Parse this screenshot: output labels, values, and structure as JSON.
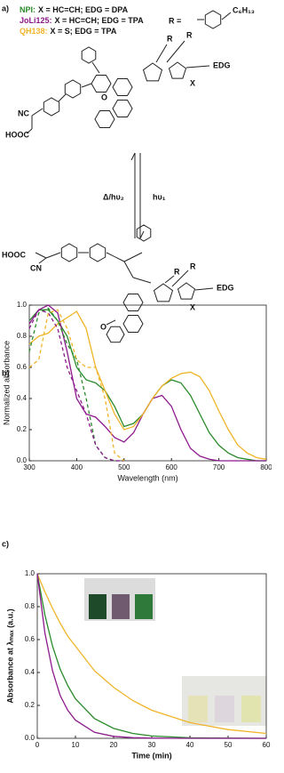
{
  "panel_labels": [
    "a)",
    "b)",
    "c)"
  ],
  "compounds": [
    {
      "name": "NPI:",
      "color": "#2a8a2a",
      "description": "X = HC=CH; EDG = DPA"
    },
    {
      "name": "JoLi125:",
      "color": "#8b1a8b",
      "description": "X = HC=CH; EDG = TPA"
    },
    {
      "name": "QH138:",
      "color": "#f0b429",
      "description": "X = S; EDG = TPA"
    }
  ],
  "chemistry": {
    "r_definition": "R =",
    "substituent": "C₆H₁₃",
    "closed_form": {
      "r1": "R",
      "r2": "R",
      "edg": "EDG",
      "x": "X",
      "o": "O",
      "nc": "NC",
      "acid": "HOOC"
    },
    "open_form": {
      "r1": "R",
      "r2": "R",
      "edg": "EDG",
      "x": "X",
      "o": "O",
      "cn": "CN",
      "acid": "HOOC"
    },
    "reverse_arrow": "Δ/hυ₂",
    "forward_arrow": "hυ₁"
  },
  "chart_data": [
    {
      "type": "line",
      "xlabel": "Wavelength (nm)",
      "ylabel": "Normalized absorbance",
      "xlim": [
        300,
        800
      ],
      "xticks": [
        300,
        400,
        500,
        600,
        700,
        800
      ],
      "ylim": [
        0,
        1.0
      ],
      "yticks": [
        {
          "value": 0,
          "label": "0.0"
        },
        0.2,
        0.4,
        0.6,
        0.8,
        {
          "value": 1.0,
          "label": "1.0"
        }
      ],
      "x": [
        300,
        320,
        340,
        360,
        380,
        400,
        420,
        440,
        460,
        480,
        500,
        520,
        540,
        560,
        580,
        600,
        620,
        640,
        660,
        680,
        700,
        720,
        740,
        760,
        780,
        800
      ],
      "series": [
        {
          "color": "#2a8a2a",
          "style": "solid",
          "values": [
            0.9,
            0.97,
            0.97,
            0.9,
            0.8,
            0.6,
            0.52,
            0.5,
            0.45,
            0.35,
            0.22,
            0.24,
            0.3,
            0.4,
            0.48,
            0.52,
            0.5,
            0.42,
            0.3,
            0.18,
            0.1,
            0.05,
            0.02,
            0.01,
            0,
            0
          ]
        },
        {
          "color": "#8b1a8b",
          "style": "solid",
          "values": [
            0.88,
            0.97,
            1.0,
            0.95,
            0.7,
            0.4,
            0.3,
            0.28,
            0.22,
            0.15,
            0.12,
            0.18,
            0.3,
            0.4,
            0.42,
            0.35,
            0.2,
            0.08,
            0.03,
            0.01,
            0,
            0,
            0,
            0,
            0,
            0
          ]
        },
        {
          "color": "#f0b429",
          "style": "solid",
          "values": [
            0.75,
            0.8,
            0.82,
            0.88,
            0.92,
            0.96,
            0.85,
            0.6,
            0.45,
            0.3,
            0.2,
            0.22,
            0.3,
            0.4,
            0.48,
            0.53,
            0.56,
            0.57,
            0.54,
            0.45,
            0.32,
            0.2,
            0.1,
            0.05,
            0.02,
            0.01
          ]
        },
        {
          "color": "#2a8a2a",
          "style": "dashed",
          "values": [
            0.7,
            0.95,
            0.98,
            0.9,
            0.75,
            0.65,
            0.4,
            0.1,
            0.02,
            0,
            0,
            null,
            null,
            null,
            null,
            null,
            null,
            null,
            null,
            null,
            null,
            null,
            null,
            null,
            null,
            null
          ]
        },
        {
          "color": "#8b1a8b",
          "style": "dashed",
          "values": [
            0.85,
            0.97,
            0.95,
            0.85,
            0.6,
            0.45,
            0.3,
            0.1,
            0.02,
            0,
            0,
            null,
            null,
            null,
            null,
            null,
            null,
            null,
            null,
            null,
            null,
            null,
            null,
            null,
            null,
            null
          ]
        },
        {
          "color": "#f0b429",
          "style": "dashed",
          "values": [
            0.6,
            0.65,
            0.95,
            0.97,
            0.85,
            0.65,
            0.6,
            0.6,
            0.4,
            0.05,
            0,
            null,
            null,
            null,
            null,
            null,
            null,
            null,
            null,
            null,
            null,
            null,
            null,
            null,
            null,
            null
          ]
        }
      ]
    },
    {
      "type": "line",
      "xlabel": "Time (min)",
      "ylabel": "Absorbance at λₘₐₓ (a.u.)",
      "xlim": [
        0,
        60
      ],
      "xticks": [
        0,
        10,
        20,
        30,
        40,
        50,
        60
      ],
      "ylim": [
        0,
        1.0
      ],
      "yticks": [
        {
          "value": 0,
          "label": "0.0"
        },
        0.2,
        0.4,
        0.6,
        0.8,
        {
          "value": 1.0,
          "label": "1.0"
        }
      ],
      "x": [
        0,
        2,
        4,
        6,
        8,
        10,
        15,
        20,
        25,
        30,
        40,
        50,
        60
      ],
      "series": [
        {
          "color": "#f0b429",
          "style": "solid",
          "values": [
            1,
            0.89,
            0.79,
            0.7,
            0.62,
            0.56,
            0.41,
            0.31,
            0.23,
            0.17,
            0.095,
            0.053,
            0.03
          ]
        },
        {
          "color": "#2a8a2a",
          "style": "solid",
          "values": [
            1,
            0.75,
            0.56,
            0.42,
            0.32,
            0.24,
            0.12,
            0.06,
            0.03,
            0.014,
            0.003,
            0.001,
            0
          ]
        },
        {
          "color": "#8b1a8b",
          "style": "solid",
          "values": [
            1,
            0.64,
            0.41,
            0.26,
            0.17,
            0.11,
            0.036,
            0.012,
            0.004,
            0.001,
            0,
            0,
            0
          ]
        }
      ]
    }
  ]
}
